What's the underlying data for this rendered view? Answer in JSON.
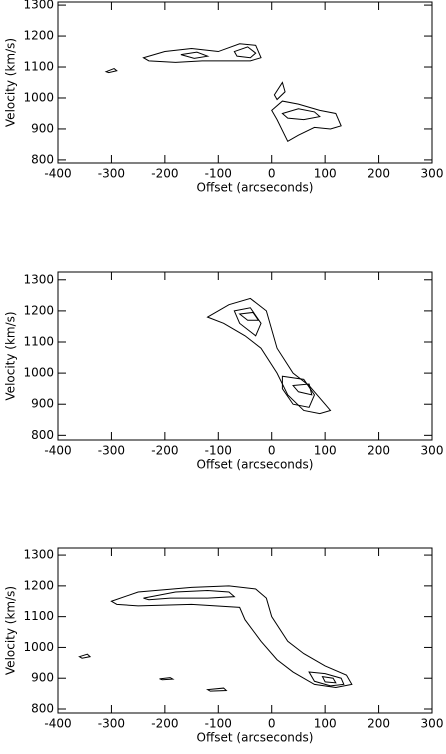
{
  "chart_data": [
    {
      "type": "contour",
      "xlabel": "Offset (arcseconds)",
      "ylabel": "Velocity (km/s)",
      "xlim": [
        -400,
        300
      ],
      "ylim": [
        790,
        1310
      ],
      "xticks": [
        -400,
        -300,
        -200,
        -100,
        0,
        100,
        200,
        300
      ],
      "yticks": [
        800,
        900,
        1000,
        1100,
        1200,
        1300
      ],
      "contours": [
        {
          "x": [
            -240,
            -200,
            -150,
            -100,
            -60,
            -30,
            -20,
            -40,
            -80,
            -130,
            -180,
            -230
          ],
          "y": [
            1130,
            1150,
            1160,
            1150,
            1175,
            1170,
            1130,
            1120,
            1120,
            1120,
            1115,
            1120
          ]
        },
        {
          "x": [
            -70,
            -45,
            -30,
            -40,
            -65
          ],
          "y": [
            1150,
            1165,
            1145,
            1130,
            1135
          ]
        },
        {
          "x": [
            -170,
            -140,
            -120,
            -145
          ],
          "y": [
            1140,
            1148,
            1135,
            1128
          ]
        },
        {
          "x": [
            -310,
            -295,
            -290,
            -305
          ],
          "y": [
            1085,
            1095,
            1088,
            1082
          ]
        },
        {
          "x": [
            0,
            20,
            50,
            90,
            120,
            130,
            110,
            80,
            50,
            30,
            10
          ],
          "y": [
            960,
            990,
            980,
            960,
            950,
            910,
            900,
            905,
            880,
            860,
            930
          ]
        },
        {
          "x": [
            20,
            50,
            80,
            90,
            60,
            30
          ],
          "y": [
            950,
            965,
            955,
            940,
            930,
            935
          ]
        },
        {
          "x": [
            5,
            20,
            25,
            10
          ],
          "y": [
            1010,
            1050,
            1020,
            995
          ]
        }
      ]
    },
    {
      "type": "contour",
      "xlabel": "Offset (arcseconds)",
      "ylabel": "Velocity (km/s)",
      "xlim": [
        -400,
        300
      ],
      "ylim": [
        785,
        1325
      ],
      "xticks": [
        -400,
        -300,
        -200,
        -100,
        0,
        100,
        200,
        300
      ],
      "yticks": [
        800,
        900,
        1000,
        1100,
        1200,
        1300
      ],
      "contours": [
        {
          "x": [
            -120,
            -80,
            -40,
            -10,
            10,
            40,
            70,
            100,
            110,
            90,
            60,
            30,
            10,
            -20,
            -50,
            -90
          ],
          "y": [
            1180,
            1220,
            1240,
            1200,
            1080,
            1000,
            960,
            900,
            880,
            870,
            880,
            930,
            1000,
            1080,
            1120,
            1160
          ]
        },
        {
          "x": [
            -70,
            -40,
            -20,
            -30,
            -60
          ],
          "y": [
            1200,
            1210,
            1160,
            1120,
            1160
          ]
        },
        {
          "x": [
            20,
            60,
            80,
            70,
            40,
            20
          ],
          "y": [
            990,
            980,
            930,
            890,
            900,
            950
          ]
        },
        {
          "x": [
            -60,
            -35,
            -25,
            -45
          ],
          "y": [
            1190,
            1195,
            1170,
            1170
          ]
        },
        {
          "x": [
            40,
            70,
            75,
            50
          ],
          "y": [
            960,
            965,
            930,
            940
          ]
        }
      ]
    },
    {
      "type": "contour",
      "xlabel": "Offset (arcseconds)",
      "ylabel": "Velocity (km/s)",
      "xlim": [
        -400,
        300
      ],
      "ylim": [
        787,
        1323
      ],
      "xticks": [
        -400,
        -300,
        -200,
        -100,
        0,
        100,
        200,
        300
      ],
      "yticks": [
        800,
        900,
        1000,
        1100,
        1200,
        1300
      ],
      "contours": [
        {
          "x": [
            -300,
            -250,
            -150,
            -80,
            -30,
            -10,
            0,
            30,
            60,
            100,
            140,
            150,
            120,
            80,
            40,
            10,
            -20,
            -50,
            -60,
            -150,
            -250,
            -290
          ],
          "y": [
            1150,
            1180,
            1195,
            1200,
            1190,
            1160,
            1100,
            1020,
            980,
            940,
            910,
            880,
            870,
            880,
            920,
            960,
            1020,
            1090,
            1130,
            1140,
            1135,
            1140
          ]
        },
        {
          "x": [
            -240,
            -180,
            -120,
            -80,
            -70,
            -120,
            -190,
            -230
          ],
          "y": [
            1160,
            1180,
            1185,
            1180,
            1165,
            1160,
            1160,
            1155
          ]
        },
        {
          "x": [
            70,
            100,
            130,
            135,
            110,
            80
          ],
          "y": [
            920,
            915,
            900,
            880,
            875,
            890
          ]
        },
        {
          "x": [
            95,
            115,
            120,
            100
          ],
          "y": [
            905,
            900,
            885,
            888
          ]
        },
        {
          "x": [
            -360,
            -345,
            -340,
            -355
          ],
          "y": [
            970,
            978,
            970,
            965
          ]
        },
        {
          "x": [
            -210,
            -190,
            -185,
            -205
          ],
          "y": [
            898,
            902,
            897,
            895
          ]
        },
        {
          "x": [
            -120,
            -90,
            -85,
            -115
          ],
          "y": [
            863,
            868,
            860,
            858
          ]
        }
      ]
    }
  ]
}
